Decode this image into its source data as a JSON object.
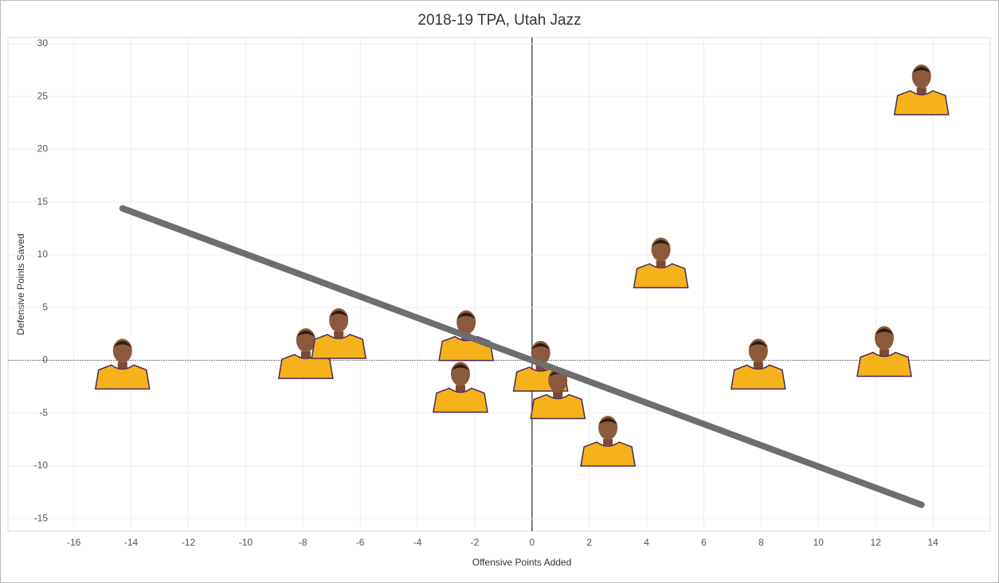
{
  "chart_data": {
    "type": "scatter",
    "title": "2018-19 TPA, Utah Jazz",
    "x_label": "Offensive Points Added",
    "y_label": "Defensive Points Saved",
    "series": [
      {
        "x": [
          13.6,
          4.5,
          -14.3,
          12.3,
          7.9,
          -7.9,
          -6.75,
          -2.3,
          -2.5,
          0.3,
          0.9,
          2.65
        ],
        "values": [
          26.0,
          9.6,
          0.0,
          1.2,
          0.0,
          1.0,
          2.9,
          2.7,
          -2.2,
          -0.2,
          -2.8,
          -7.3
        ],
        "color": "#f5b21b"
      }
    ],
    "trend_line": {
      "x": [
        -14.3,
        13.6
      ],
      "values": [
        14.4,
        -13.7
      ],
      "color": "#6e6e6e"
    },
    "xlim": [
      -18.3,
      16
    ],
    "ylim": [
      -16.2,
      30.6
    ],
    "xticks": [
      -16,
      -14,
      -12,
      -10,
      -8,
      -6,
      -4,
      -2,
      0,
      2,
      4,
      6,
      8,
      10,
      12,
      14
    ],
    "yticks": [
      -15,
      -10,
      -5,
      0,
      5,
      10,
      15,
      20,
      25,
      30
    ],
    "grid": true
  }
}
